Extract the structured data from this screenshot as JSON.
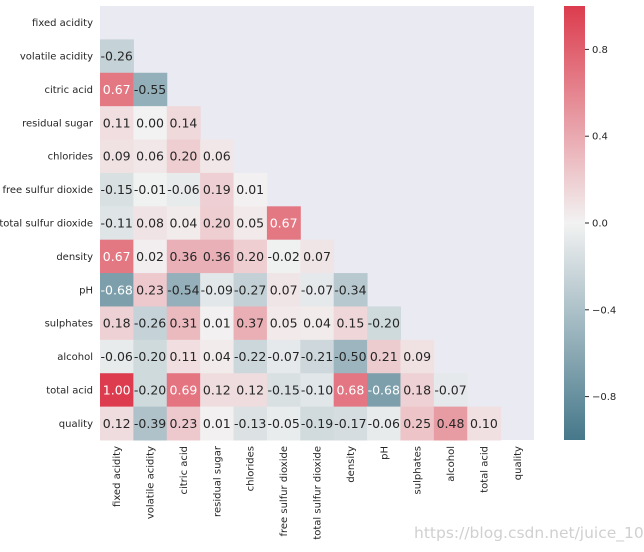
{
  "chart_data": {
    "type": "heatmap",
    "subtype": "lower-triangle-correlation",
    "variables": [
      "fixed acidity",
      "volatile acidity",
      "citric acid",
      "residual sugar",
      "chlorides",
      "free sulfur dioxide",
      "total sulfur dioxide",
      "density",
      "pH",
      "sulphates",
      "alcohol",
      "total acid",
      "quality"
    ],
    "matrix": [
      [
        null
      ],
      [
        -0.26
      ],
      [
        0.67,
        -0.55
      ],
      [
        0.11,
        0.0,
        0.14
      ],
      [
        0.09,
        0.06,
        0.2,
        0.06
      ],
      [
        -0.15,
        -0.01,
        -0.06,
        0.19,
        0.01
      ],
      [
        -0.11,
        0.08,
        0.04,
        0.2,
        0.05,
        0.67
      ],
      [
        0.67,
        0.02,
        0.36,
        0.36,
        0.2,
        -0.02,
        0.07
      ],
      [
        -0.68,
        0.23,
        -0.54,
        -0.09,
        -0.27,
        0.07,
        -0.07,
        -0.34
      ],
      [
        0.18,
        -0.26,
        0.31,
        0.01,
        0.37,
        0.05,
        0.04,
        0.15,
        -0.2
      ],
      [
        -0.06,
        -0.2,
        0.11,
        0.04,
        -0.22,
        -0.07,
        -0.21,
        -0.5,
        0.21,
        0.09
      ],
      [
        1.0,
        -0.2,
        0.69,
        0.12,
        0.12,
        -0.15,
        -0.1,
        0.68,
        -0.68,
        0.18,
        -0.07
      ],
      [
        0.12,
        -0.39,
        0.23,
        0.01,
        -0.13,
        -0.05,
        -0.19,
        -0.17,
        -0.06,
        0.25,
        0.48,
        0.1
      ]
    ],
    "vmin": -1,
    "vmax": 1,
    "colorbar_ticks": [
      0.8,
      0.4,
      0.0,
      -0.4,
      -0.8
    ],
    "colorbar_tick_labels": [
      "0.8",
      "0.4",
      "0.0",
      "−0.4",
      "−0.8"
    ],
    "colormap": {
      "negative": "#45788a",
      "center": "#f2f2f2",
      "positive": "#dc3c4d"
    },
    "background": "#eaeaf2",
    "watermark": "https://blog.csdn.net/juice_10"
  }
}
